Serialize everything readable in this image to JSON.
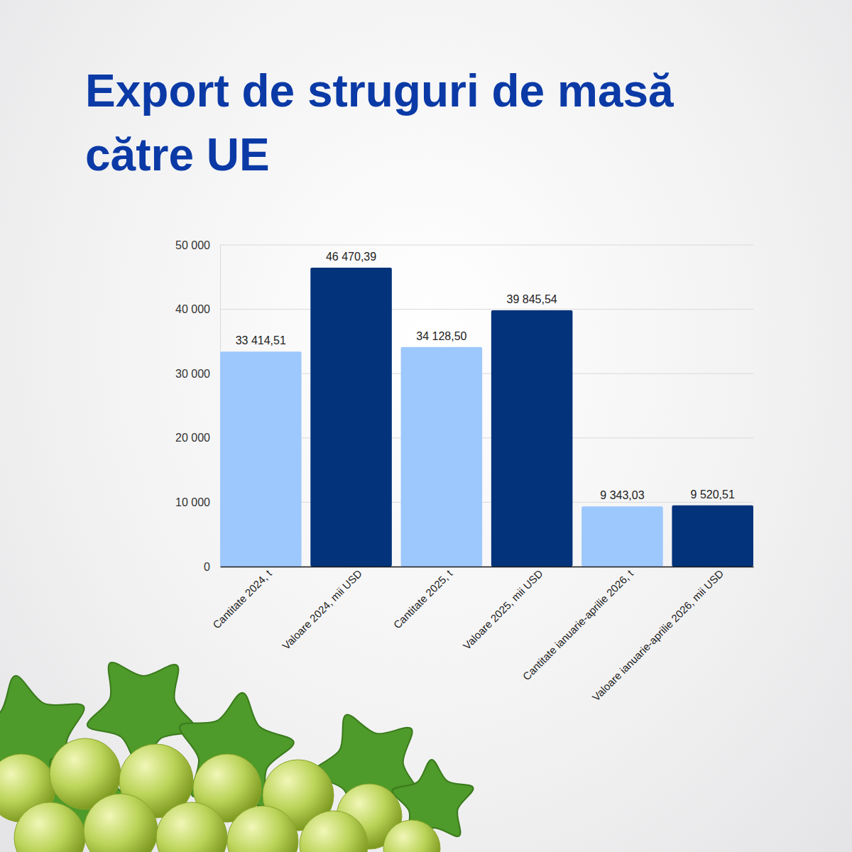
{
  "chart_data": {
    "type": "bar",
    "title": "Export de struguri de masă către UE",
    "categories": [
      "Cantitate 2024, t",
      "Valoare 2024, mii USD",
      "Cantitate 2025, t",
      "Valoare 2025, mii USD",
      "Cantitate ianuarie-aprilie 2026, t",
      "Valoare ianuarie-aprilie 2026, mii USD"
    ],
    "values": [
      33414.51,
      46470.39,
      34128.5,
      39845.54,
      9343.03,
      9520.51
    ],
    "value_labels": [
      "33 414,51",
      "46 470,39",
      "34 128,50",
      "39 845,54",
      "9 343,03",
      "9 520,51"
    ],
    "colors": [
      "#9dc8fd",
      "#03337a",
      "#9dc8fd",
      "#03337a",
      "#9dc8fd",
      "#03337a"
    ],
    "ylim": [
      0,
      50000
    ],
    "yticks": [
      0,
      {
        "value": 10000,
        "label": "10 000"
      },
      {
        "value": 20000,
        "label": "20 000"
      },
      {
        "value": 30000,
        "label": "30 000"
      },
      {
        "value": 40000,
        "label": "40 000"
      },
      {
        "value": 50000,
        "label": "50 000"
      }
    ],
    "grid": true,
    "data_labels": true
  }
}
